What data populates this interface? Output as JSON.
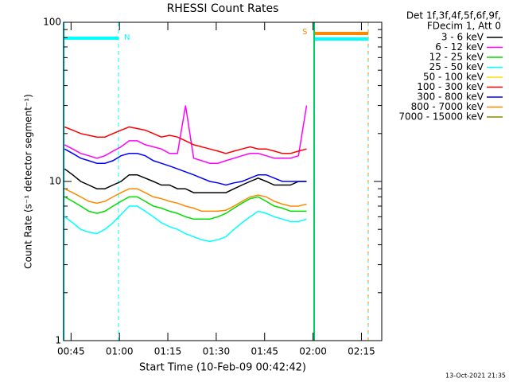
{
  "chart_data": {
    "type": "line",
    "title": "RHESSI Count Rates",
    "xlabel": "Start Time (10-Feb-09 00:42:42)",
    "ylabel": "Count Rate (s⁻¹ detector segment⁻¹)",
    "legend_title": [
      "Det 1f,3f,4f,5f,6f,9f,",
      "FDecim 1, Att 0"
    ],
    "legend": "outside-right",
    "footer": "13-Oct-2021 21:35",
    "annotations": [
      "N",
      "S"
    ],
    "ylog": true,
    "xlim": [
      42.7,
      141.3
    ],
    "xticks": [
      {
        "value": 45,
        "label": "00:45"
      },
      {
        "value": 60,
        "label": "01:00"
      },
      {
        "value": 75,
        "label": "01:15"
      },
      {
        "value": 90,
        "label": "01:30"
      },
      {
        "value": 105,
        "label": "01:45"
      },
      {
        "value": 120,
        "label": "02:00"
      },
      {
        "value": 135,
        "label": "02:15"
      }
    ],
    "ylim": [
      1,
      100
    ],
    "yticks": [
      1,
      10,
      100
    ],
    "y_minor_ticks": [
      2,
      3,
      4,
      5,
      6,
      7,
      8,
      9,
      20,
      30,
      40,
      50,
      60,
      70,
      80,
      90
    ],
    "x": [
      43,
      45.5,
      48,
      50.5,
      53,
      55.5,
      58,
      60.5,
      63,
      65.5,
      68,
      70.5,
      73,
      75.5,
      78,
      80.5,
      83,
      85.5,
      88,
      90.5,
      93,
      95.5,
      98,
      100.5,
      103,
      105.5,
      108,
      110.5,
      113,
      115.5,
      118
    ],
    "series": [
      {
        "name": "3 - 6 keV",
        "color": "#000000",
        "values": [
          12,
          11,
          10,
          9.5,
          9,
          9,
          9.5,
          10,
          11,
          11,
          10.5,
          10,
          9.5,
          9.5,
          9,
          9,
          8.5,
          8.5,
          8.5,
          8.5,
          8.5,
          9,
          9.5,
          10,
          10.5,
          10,
          9.5,
          9.5,
          9.5,
          10,
          10
        ]
      },
      {
        "name": "6 - 12 keV",
        "color": "#ff00ff",
        "values": [
          17,
          16,
          15,
          14.5,
          14,
          14.5,
          15.5,
          16.5,
          18,
          18,
          17,
          16.5,
          16,
          15,
          15,
          30,
          14,
          13.5,
          13,
          13,
          13.5,
          14,
          14.5,
          15,
          15,
          14.5,
          14,
          14,
          14,
          14.5,
          30
        ]
      },
      {
        "name": "12 - 25 keV",
        "color": "#00dd00",
        "values": [
          8,
          7.5,
          7,
          6.5,
          6.3,
          6.5,
          7,
          7.5,
          8,
          8,
          7.5,
          7,
          6.8,
          6.5,
          6.3,
          6,
          5.8,
          5.8,
          5.8,
          6,
          6.3,
          6.8,
          7.3,
          7.8,
          8,
          7.5,
          7,
          6.8,
          6.5,
          6.5,
          6.5
        ]
      },
      {
        "name": "25 - 50 keV",
        "color": "#00ffff",
        "values": [
          6,
          5.5,
          5,
          4.8,
          4.7,
          5,
          5.5,
          6.2,
          7,
          7,
          6.5,
          6,
          5.5,
          5.2,
          5,
          4.7,
          4.5,
          4.3,
          4.2,
          4.3,
          4.5,
          5,
          5.5,
          6,
          6.5,
          6.3,
          6,
          5.8,
          5.6,
          5.6,
          5.8
        ]
      },
      {
        "name": "50 - 100 keV",
        "color": "#ffdd00",
        "values": [
          null,
          null,
          null,
          null,
          null,
          null,
          null,
          null,
          null,
          null,
          null,
          null,
          null,
          null,
          null,
          null,
          null,
          null,
          null,
          null,
          null,
          null,
          null,
          null,
          null,
          null,
          null,
          null,
          null,
          null,
          null
        ]
      },
      {
        "name": "100 - 300 keV",
        "color": "#ff0000",
        "values": [
          22,
          21,
          20,
          19.5,
          19,
          19,
          20,
          21,
          22,
          21.5,
          21,
          20,
          19,
          19.5,
          19,
          18,
          17,
          16.5,
          16,
          15.5,
          15,
          15.5,
          16,
          16.5,
          16,
          16,
          15.5,
          15,
          15,
          15.5,
          16
        ]
      },
      {
        "name": "300 - 800 keV",
        "color": "#0000ff",
        "values": [
          16,
          15,
          14,
          13.5,
          13,
          13,
          13.5,
          14.5,
          15,
          15,
          14.5,
          13.5,
          13,
          12.5,
          12,
          11.5,
          11,
          10.5,
          10,
          9.8,
          9.5,
          9.8,
          10,
          10.5,
          11,
          11,
          10.5,
          10,
          10,
          10,
          10
        ]
      },
      {
        "name": "800 - 7000 keV",
        "color": "#ff8800",
        "values": [
          9,
          8.5,
          8,
          7.5,
          7.3,
          7.5,
          8,
          8.5,
          9,
          9,
          8.5,
          8,
          7.8,
          7.5,
          7.3,
          7,
          6.8,
          6.5,
          6.5,
          6.5,
          6.6,
          7,
          7.5,
          8,
          8.2,
          8,
          7.5,
          7.2,
          7,
          7,
          7.2
        ]
      },
      {
        "name": "7000 - 15000 keV",
        "color": "#888800",
        "values": [
          null,
          null,
          null,
          null,
          null,
          null,
          null,
          null,
          null,
          null,
          null,
          null,
          null,
          null,
          null,
          null,
          null,
          null,
          null,
          null,
          null,
          null,
          null,
          null,
          null,
          null,
          null,
          null,
          null,
          null,
          null
        ]
      }
    ]
  }
}
